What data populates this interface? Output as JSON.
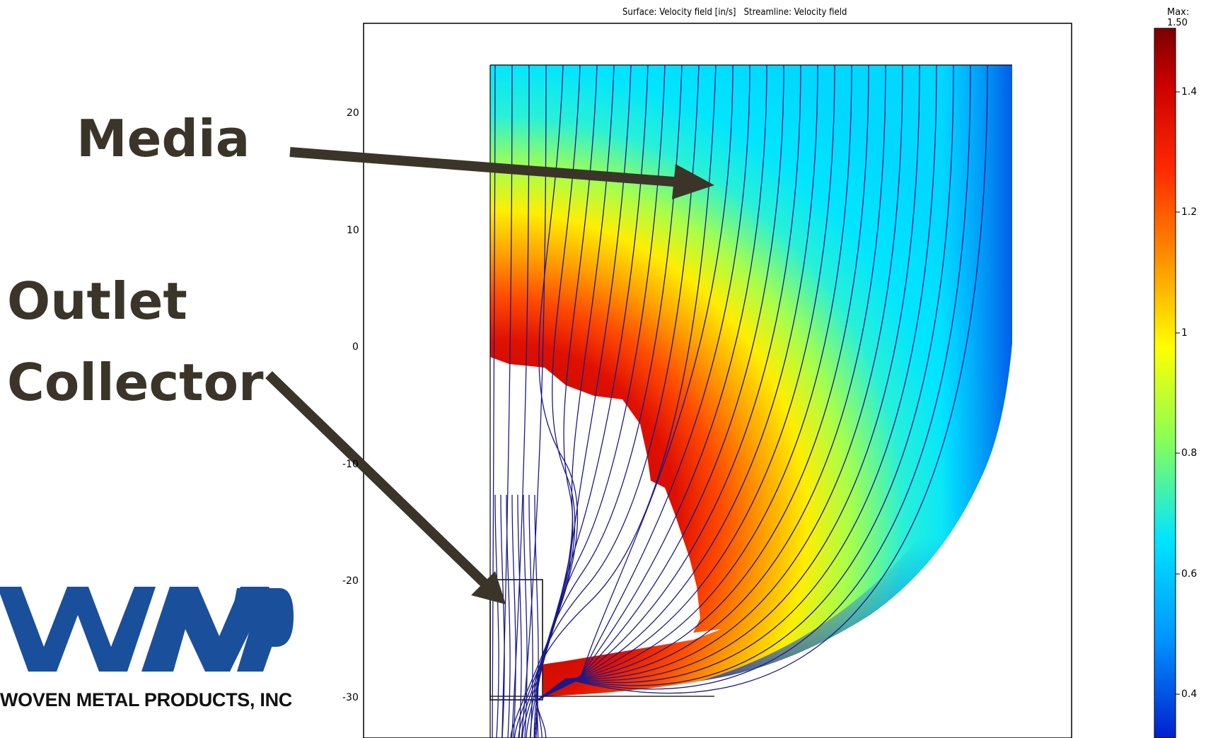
{
  "plot": {
    "title": "Surface: Velocity field [in/s]   Streamline: Velocity field",
    "y_ticks": [
      "20",
      "10",
      "0",
      "-10",
      "-20",
      "-30"
    ]
  },
  "colorbar": {
    "max_label": "Max: 1.50",
    "ticks": [
      "1.4",
      "1.2",
      "1",
      "0.8",
      "0.6",
      "0.4"
    ],
    "colors": [
      "#7a0000",
      "#ff2a00",
      "#ff9a00",
      "#ffff00",
      "#66ff66",
      "#00e5ff",
      "#0088ff",
      "#0010c0"
    ]
  },
  "callouts": {
    "media": "Media",
    "outlet": "Outlet",
    "collector": "Collector"
  },
  "logo": {
    "text": "WOVEN METAL PRODUCTS, INC",
    "color": "#1a4f9c"
  }
}
